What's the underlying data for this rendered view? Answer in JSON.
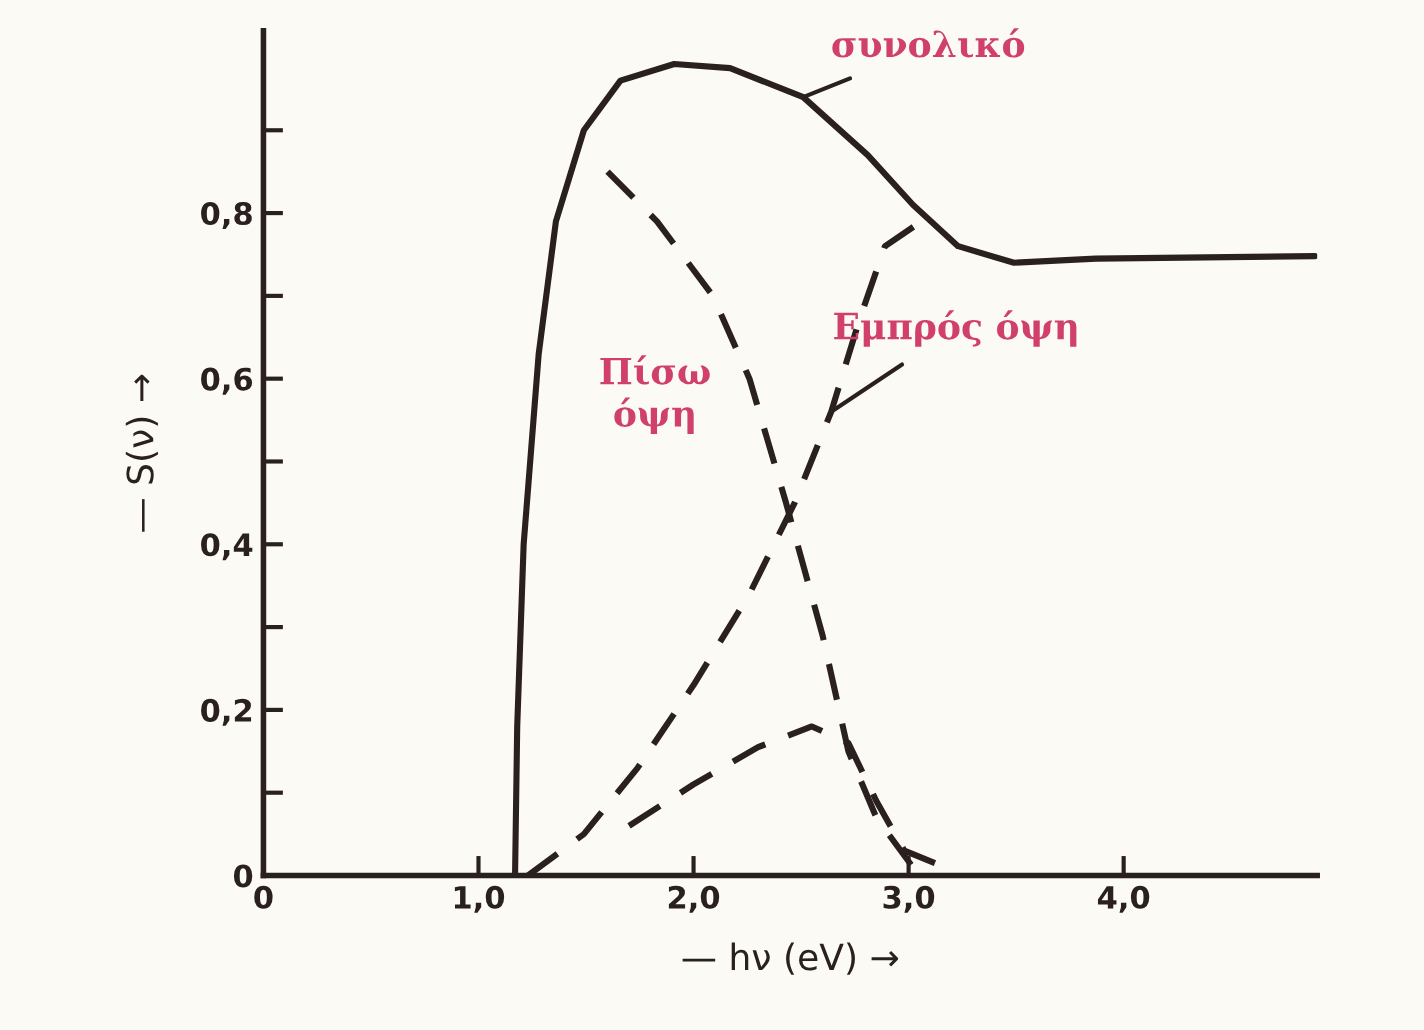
{
  "chart_data": {
    "type": "line",
    "xlabel": "— hν (eV) →",
    "ylabel": "— S(ν) →",
    "xlim": [
      0,
      4.9
    ],
    "ylim": [
      0,
      1.02
    ],
    "xticks": [
      0,
      {
        "value": 1,
        "label": "1,0"
      },
      {
        "value": 2,
        "label": "2,0"
      },
      {
        "value": 3,
        "label": "3,0"
      },
      {
        "value": 4,
        "label": "4,0"
      }
    ],
    "yticks": [
      0,
      {
        "value": 0.1,
        "label": null
      },
      {
        "value": 0.2,
        "label": "0,2"
      },
      {
        "value": 0.3,
        "label": null
      },
      {
        "value": 0.4,
        "label": "0,4"
      },
      {
        "value": 0.5,
        "label": null
      },
      {
        "value": 0.6,
        "label": "0,6"
      },
      {
        "value": 0.7,
        "label": null
      },
      {
        "value": 0.8,
        "label": "0,8"
      },
      {
        "value": 0.9,
        "label": null
      }
    ],
    "grid": false,
    "legend": false,
    "marker": "none",
    "series": [
      {
        "name": "συνολικό",
        "color": "#2a2020",
        "line_style": "solid",
        "x": [
          1.17,
          1.18,
          1.21,
          1.28,
          1.36,
          1.49,
          1.66,
          1.91,
          2.17,
          2.51,
          2.81,
          3.02,
          3.23,
          3.49,
          3.87,
          4.89
        ],
        "values": [
          0,
          0.18,
          0.4,
          0.63,
          0.79,
          0.9,
          0.96,
          0.98,
          0.975,
          0.94,
          0.87,
          0.81,
          0.76,
          0.74,
          0.745,
          0.748
        ]
      },
      {
        "name": "Πίσω\nόψη",
        "color": "#2a2020",
        "line_style": "dashed",
        "x": [
          1.6,
          1.83,
          2.09,
          2.26,
          2.43,
          2.6,
          2.72,
          2.85,
          3.02
        ],
        "values": [
          0.85,
          0.79,
          0.7,
          0.6,
          0.45,
          0.29,
          0.15,
          0.07,
          0.01
        ]
      },
      {
        "name": "Εμπρός όψη",
        "color": "#2a2020",
        "line_style": "dashed",
        "x": [
          1.23,
          1.49,
          1.74,
          2.0,
          2.26,
          2.47,
          2.64,
          2.77,
          2.89,
          3.06
        ],
        "values": [
          0,
          0.05,
          0.13,
          0.23,
          0.34,
          0.45,
          0.56,
          0.67,
          0.76,
          0.79
        ]
      },
      {
        "color": "#2a2020",
        "line_style": "dashed",
        "x": [
          1.7,
          2.0,
          2.3,
          2.55,
          2.72,
          2.85,
          2.98,
          3.17
        ],
        "values": [
          0.06,
          0.11,
          0.155,
          0.18,
          0.16,
          0.09,
          0.03,
          0.01
        ]
      }
    ]
  }
}
